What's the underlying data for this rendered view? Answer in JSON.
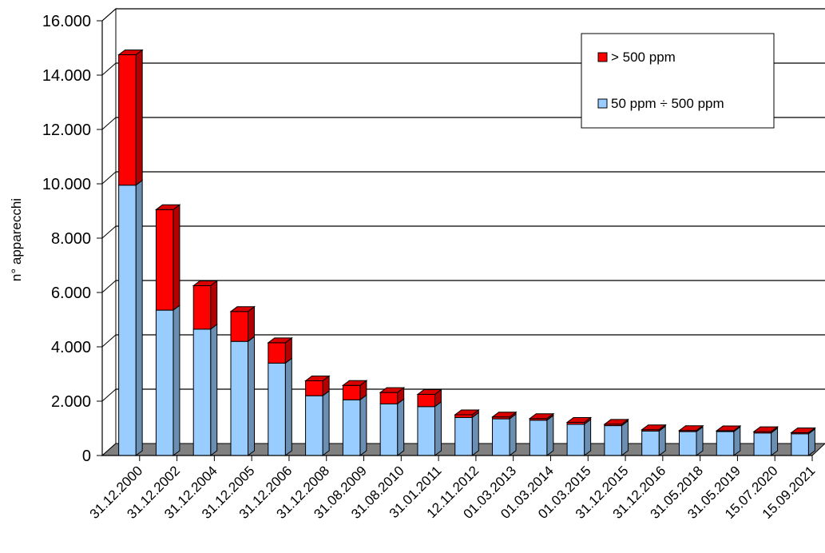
{
  "chart_data": {
    "type": "bar",
    "stacked": true,
    "three_d": true,
    "categories": [
      "31.12.2000",
      "31.12.2002",
      "31.12.2004",
      "31.12.2005",
      "31.12.2006",
      "31.12.2008",
      "31.08.2009",
      "31.08.2010",
      "31.01.2011",
      "12.11.2012",
      "01.03.2013",
      "01.03.2014",
      "01.03.2015",
      "31.12.2015",
      "31.12.2016",
      "31.05.2018",
      "31.05.2019",
      "15.07.2020",
      "15.09.2021"
    ],
    "series": [
      {
        "name": "50 ppm ÷ 500 ppm",
        "color": "#99ccff",
        "values": [
          9950,
          5350,
          4650,
          4200,
          3400,
          2200,
          2050,
          1900,
          1800,
          1400,
          1350,
          1300,
          1150,
          1100,
          900,
          880,
          880,
          830,
          800
        ]
      },
      {
        "name": "> 500 ppm",
        "color": "#ff0000",
        "values": [
          4800,
          3700,
          1600,
          1100,
          750,
          550,
          530,
          420,
          450,
          100,
          70,
          60,
          70,
          50,
          50,
          40,
          30,
          50,
          40
        ]
      }
    ],
    "ylabel": "n° apparecchi",
    "xlabel": "",
    "ylim": [
      0,
      16000
    ],
    "yticks": [
      "0",
      "2.000",
      "4.000",
      "6.000",
      "8.000",
      "10.000",
      "12.000",
      "14.000",
      "16.000"
    ],
    "grid": true,
    "legend_position": "top-right",
    "colors": {
      "gridline": "#000000",
      "floor": "#808080"
    }
  }
}
